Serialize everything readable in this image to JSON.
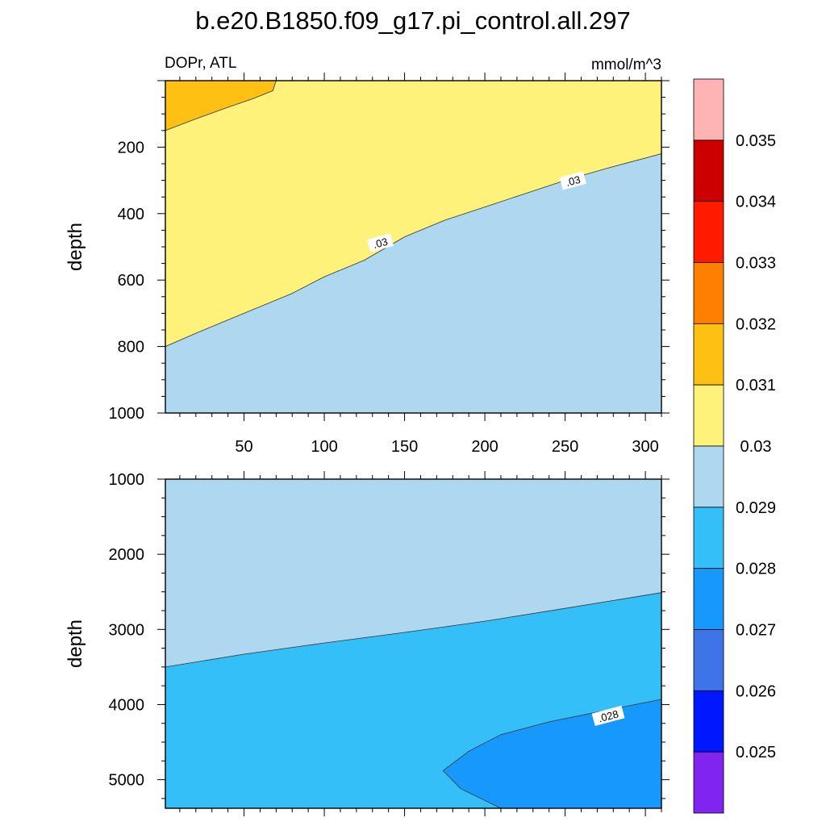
{
  "chart_data": {
    "type": "contour",
    "title": "b.e20.B1850.f09_g17.pi_control.all.297",
    "left_string": "DOPr, ATL",
    "right_string": "mmol/m^3",
    "panels": [
      {
        "id": "upper",
        "ylabel": "depth",
        "xlim": [
          1,
          310
        ],
        "ylim": [
          1000,
          0
        ],
        "xticks": [
          "50",
          "100",
          "150",
          "200",
          "250",
          "300"
        ],
        "yticks": [
          "200",
          "400",
          "600",
          "800",
          "1000"
        ],
        "xtick_values": [
          50,
          100,
          150,
          200,
          250,
          300
        ],
        "ytick_values": [
          200,
          400,
          600,
          800,
          1000
        ],
        "regions": [
          {
            "level": "0.030-0.031",
            "color": "#fff27a",
            "boundary": []
          },
          {
            "level": "0.029-0.030",
            "color": "#add8f0",
            "boundary": [
              [
                1,
                800
              ],
              [
                20,
                760
              ],
              [
                50,
                700
              ],
              [
                80,
                640
              ],
              [
                100,
                590
              ],
              [
                125,
                540
              ],
              [
                150,
                470
              ],
              [
                175,
                420
              ],
              [
                200,
                380
              ],
              [
                225,
                340
              ],
              [
                250,
                300
              ],
              [
                275,
                265
              ],
              [
                310,
                220
              ],
              [
                310,
                1000
              ],
              [
                1,
                1000
              ]
            ]
          },
          {
            "level": "0.031-0.032",
            "color": "#ffc014",
            "boundary": [
              [
                1,
                0
              ],
              [
                70,
                0
              ],
              [
                68,
                30
              ],
              [
                55,
                55
              ],
              [
                40,
                80
              ],
              [
                20,
                115
              ],
              [
                1,
                150
              ]
            ]
          }
        ],
        "contour_labels": [
          {
            "text": ".03",
            "x": 135,
            "y": 490,
            "angle": -15
          },
          {
            "text": ".03",
            "x": 255,
            "y": 303,
            "angle": -15
          }
        ]
      },
      {
        "id": "lower",
        "ylabel": "depth",
        "xlim": [
          1,
          310
        ],
        "ylim": [
          5380,
          1000
        ],
        "yticks": [
          "1000",
          "2000",
          "3000",
          "4000",
          "5000"
        ],
        "ytick_values": [
          1000,
          2000,
          3000,
          4000,
          5000
        ],
        "regions": [
          {
            "level": "0.029-0.030",
            "color": "#add8f0",
            "boundary": []
          },
          {
            "level": "0.028-0.029",
            "color": "#35bff8",
            "boundary": [
              [
                1,
                3500
              ],
              [
                50,
                3330
              ],
              [
                100,
                3180
              ],
              [
                150,
                3040
              ],
              [
                200,
                2890
              ],
              [
                250,
                2720
              ],
              [
                310,
                2510
              ],
              [
                310,
                5380
              ],
              [
                1,
                5380
              ]
            ]
          },
          {
            "level": "0.027-0.028",
            "color": "#1698fc",
            "boundary": [
              [
                174,
                4880
              ],
              [
                190,
                4620
              ],
              [
                210,
                4400
              ],
              [
                240,
                4230
              ],
              [
                270,
                4100
              ],
              [
                310,
                3930
              ],
              [
                310,
                5380
              ],
              [
                210,
                5380
              ],
              [
                185,
                5120
              ]
            ]
          }
        ],
        "contour_labels": [
          {
            "text": ".028",
            "x": 277,
            "y": 4160,
            "angle": -15
          }
        ]
      }
    ],
    "colorbar": {
      "orientation": "vertical",
      "labels": [
        "0.035",
        "0.034",
        "0.033",
        "0.032",
        "0.031",
        "0.03",
        "0.029",
        "0.028",
        "0.027",
        "0.026",
        "0.025"
      ],
      "colors_top_to_bottom": [
        "#ffb3b3",
        "#cc0000",
        "#ff1a00",
        "#ff7f00",
        "#ffc014",
        "#fff27a",
        "#add8f0",
        "#35bff8",
        "#1698fc",
        "#3d74e8",
        "#0018ff",
        "#8224f0"
      ]
    }
  }
}
